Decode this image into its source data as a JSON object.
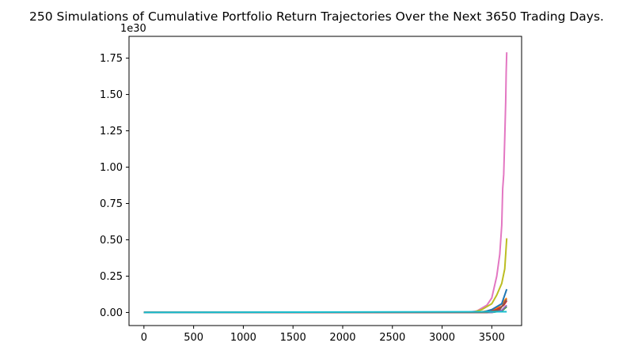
{
  "chart_data": {
    "type": "line",
    "title": "250 Simulations of Cumulative Portfolio Return Trajectories Over the Next 3650 Trading Days.",
    "xlabel": "",
    "ylabel": "",
    "y_offset_label": "1e30",
    "xlim": [
      -150,
      3800
    ],
    "ylim": [
      -0.09,
      1.9
    ],
    "x_ticks": [
      0,
      500,
      1000,
      1500,
      2000,
      2500,
      3000,
      3500
    ],
    "x_tick_labels": [
      "0",
      "500",
      "1000",
      "1500",
      "2000",
      "2500",
      "3000",
      "3500"
    ],
    "y_ticks": [
      0.0,
      0.25,
      0.5,
      0.75,
      1.0,
      1.25,
      1.5,
      1.75
    ],
    "y_tick_labels": [
      "0.00",
      "0.25",
      "0.50",
      "0.75",
      "1.00",
      "1.25",
      "1.50",
      "1.75"
    ],
    "grid": false,
    "legend": "none",
    "n_simulations": 250,
    "n_days": 3650,
    "series": [
      {
        "color": "#e377c2",
        "points": [
          [
            0,
            0
          ],
          [
            3250,
            0
          ],
          [
            3350,
            0.01
          ],
          [
            3450,
            0.05
          ],
          [
            3500,
            0.1
          ],
          [
            3550,
            0.25
          ],
          [
            3580,
            0.4
          ],
          [
            3600,
            0.6
          ],
          [
            3610,
            0.85
          ],
          [
            3620,
            0.95
          ],
          [
            3630,
            1.2
          ],
          [
            3640,
            1.45
          ],
          [
            3645,
            1.65
          ],
          [
            3650,
            1.79
          ]
        ]
      },
      {
        "color": "#bcbd22",
        "points": [
          [
            0,
            0
          ],
          [
            3300,
            0
          ],
          [
            3400,
            0.02
          ],
          [
            3500,
            0.06
          ],
          [
            3550,
            0.12
          ],
          [
            3600,
            0.2
          ],
          [
            3630,
            0.3
          ],
          [
            3650,
            0.51
          ]
        ]
      },
      {
        "color": "#ff7f0e",
        "points": [
          [
            0,
            0
          ],
          [
            3350,
            0
          ],
          [
            3450,
            0.01
          ],
          [
            3550,
            0.03
          ],
          [
            3600,
            0.06
          ],
          [
            3650,
            0.1
          ]
        ]
      },
      {
        "color": "#1f77b4",
        "points": [
          [
            0,
            0
          ],
          [
            3400,
            0
          ],
          [
            3500,
            0.02
          ],
          [
            3600,
            0.06
          ],
          [
            3650,
            0.16
          ]
        ]
      },
      {
        "color": "#d62728",
        "points": [
          [
            0,
            0
          ],
          [
            3450,
            0
          ],
          [
            3550,
            0.02
          ],
          [
            3620,
            0.05
          ],
          [
            3650,
            0.08
          ]
        ]
      },
      {
        "color": "#2ca02c",
        "points": [
          [
            0,
            0
          ],
          [
            3500,
            0
          ],
          [
            3600,
            0.01
          ],
          [
            3650,
            0.04
          ]
        ]
      },
      {
        "color": "#9467bd",
        "points": [
          [
            0,
            0
          ],
          [
            3500,
            0
          ],
          [
            3600,
            0.015
          ],
          [
            3650,
            0.05
          ]
        ]
      },
      {
        "color": "#8c564b",
        "points": [
          [
            0,
            0
          ],
          [
            3450,
            0
          ],
          [
            3580,
            0.02
          ],
          [
            3650,
            0.09
          ]
        ]
      },
      {
        "color": "#17becf",
        "points": [
          [
            0,
            0
          ],
          [
            3650,
            0.005
          ]
        ]
      }
    ]
  }
}
